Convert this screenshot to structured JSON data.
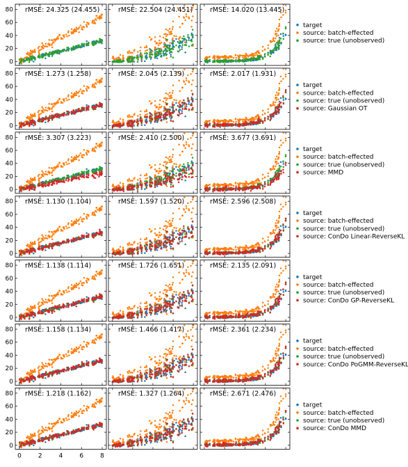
{
  "colors": {
    "target": "#1f77b4",
    "source: batch-effected": "#ff7f0e",
    "source: true (unobserved)": "#2ca02c",
    "method": "#d62728"
  },
  "chart_data": {
    "type": "scatter",
    "grid": false,
    "legend_placement": "right of each row",
    "x_ticks": [
      0,
      2,
      4,
      6,
      8
    ],
    "y_ticks": [
      0,
      20,
      40,
      60,
      80
    ],
    "xlim": [
      -0.4,
      8.4
    ],
    "ylim": [
      -6,
      88
    ],
    "x_range": [
      0,
      8
    ],
    "column_patterns": [
      "linear",
      "quadratic",
      "exponential"
    ],
    "series": [
      {
        "name": "target",
        "values": []
      },
      {
        "name": "source: batch-effected",
        "values": []
      },
      {
        "name": "source: true (unobserved)",
        "values": []
      }
    ],
    "rows": [
      {
        "legend": [
          "target",
          "source: batch-effected",
          "source: true (unobserved)"
        ],
        "rmse": [
          "rMSE: 24.325 (24.455)",
          "rMSE: 22.504 (24.451)",
          "rMSE: 14.020 (13.445)"
        ]
      },
      {
        "legend": [
          "target",
          "source: batch-effected",
          "source: true (unobserved)",
          "source: Gaussian OT"
        ],
        "rmse": [
          "rMSE: 1.273 (1.258)",
          "rMSE: 2.045 (2.139)",
          "rMSE: 2.017 (1.931)"
        ]
      },
      {
        "legend": [
          "target",
          "source: batch-effected",
          "source: true (unobserved)",
          "source: MMD"
        ],
        "rmse": [
          "rMSE: 3.307  (3.223)",
          "rMSE: 2.410  (2.500)",
          "rMSE: 3.677  (3.691)"
        ]
      },
      {
        "legend": [
          "target",
          "source: batch-effected",
          "source: true (unobserved)",
          "source: ConDo Linear-ReverseKL"
        ],
        "rmse": [
          "rMSE: 1.130 (1.104)",
          "rMSE: 1.597 (1.520)",
          "rMSE: 2.596 (2.508)"
        ]
      },
      {
        "legend": [
          "target",
          "source: batch-effected",
          "source: true (unobserved)",
          "source: ConDo GP-ReverseKL"
        ],
        "rmse": [
          "rMSE: 1.138 (1.114)",
          "rMSE: 1.726 (1.651)",
          "rMSE: 2.135 (2.091)"
        ]
      },
      {
        "legend": [
          "target",
          "source: batch-effected",
          "source: true (unobserved)",
          "source: ConDo PoGMM-ReverseKL"
        ],
        "rmse": [
          "rMSE: 1.158 (1.134)",
          "rMSE: 1.466 (1.417)",
          "rMSE: 2.361 (2.234)"
        ]
      },
      {
        "legend": [
          "target",
          "source: batch-effected",
          "source: true (unobserved)",
          "source: ConDo MMD"
        ],
        "rmse": [
          "rMSE: 1.218  (1.162)",
          "rMSE: 1.327  (1.264)",
          "rMSE: 2.671  (2.476)"
        ]
      }
    ]
  }
}
